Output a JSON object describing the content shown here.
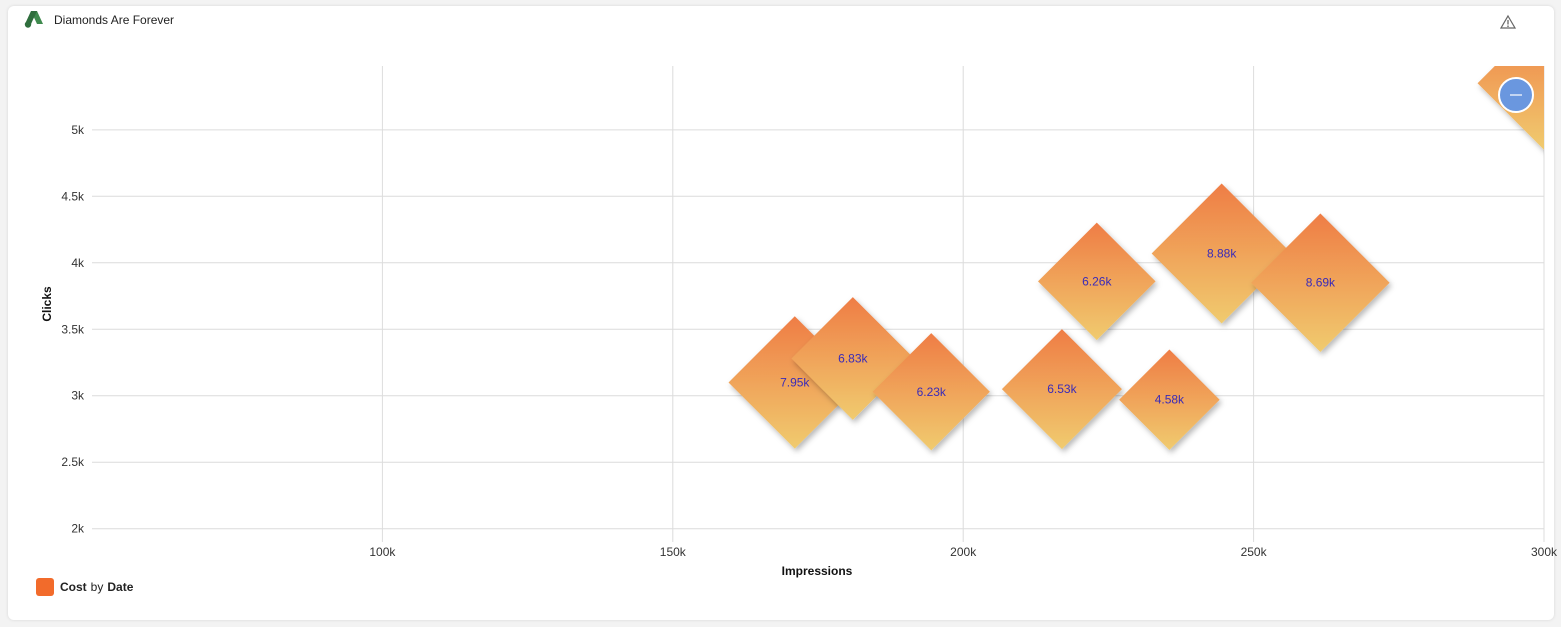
{
  "header": {
    "title": "Diamonds Are Forever",
    "logo_icon": "google-ads-logo",
    "warning_icon": "warning-icon"
  },
  "legend": {
    "measure": "Cost",
    "by": "by",
    "dimension": "Date",
    "color": "#f26b2b"
  },
  "chart_data": {
    "type": "scatter",
    "marker": "diamond",
    "xlabel": "Impressions",
    "ylabel": "Clicks",
    "xlim": [
      50000,
      300000
    ],
    "ylim": [
      1900,
      5480
    ],
    "xticks": [
      100000,
      150000,
      200000,
      250000,
      300000
    ],
    "xtick_labels": [
      "100k",
      "150k",
      "200k",
      "250k",
      "300k"
    ],
    "yticks": [
      2000,
      2500,
      3000,
      3500,
      4000,
      4500,
      5000
    ],
    "ytick_labels": [
      "2k",
      "2.5k",
      "3k",
      "3.5k",
      "4k",
      "4.5k",
      "5k"
    ],
    "grid": true,
    "gradient": {
      "top": "#ef7d45",
      "bottom": "#f0cb6f"
    },
    "series": [
      {
        "name": "Cost",
        "points": [
          {
            "x": 171000,
            "y": 3100,
            "size": 7950,
            "label": "7.95k"
          },
          {
            "x": 181000,
            "y": 3280,
            "size": 6830,
            "label": "6.83k"
          },
          {
            "x": 194500,
            "y": 3030,
            "size": 6230,
            "label": "6.23k"
          },
          {
            "x": 217000,
            "y": 3050,
            "size": 6530,
            "label": "6.53k"
          },
          {
            "x": 223000,
            "y": 3860,
            "size": 6260,
            "label": "6.26k"
          },
          {
            "x": 235500,
            "y": 2970,
            "size": 4580,
            "label": "4.58k"
          },
          {
            "x": 244500,
            "y": 4070,
            "size": 8880,
            "label": "8.88k"
          },
          {
            "x": 261500,
            "y": 3850,
            "size": 8690,
            "label": "8.69k"
          },
          {
            "x": 300000,
            "y": 5350,
            "size": 8000,
            "label": ""
          }
        ]
      }
    ]
  }
}
